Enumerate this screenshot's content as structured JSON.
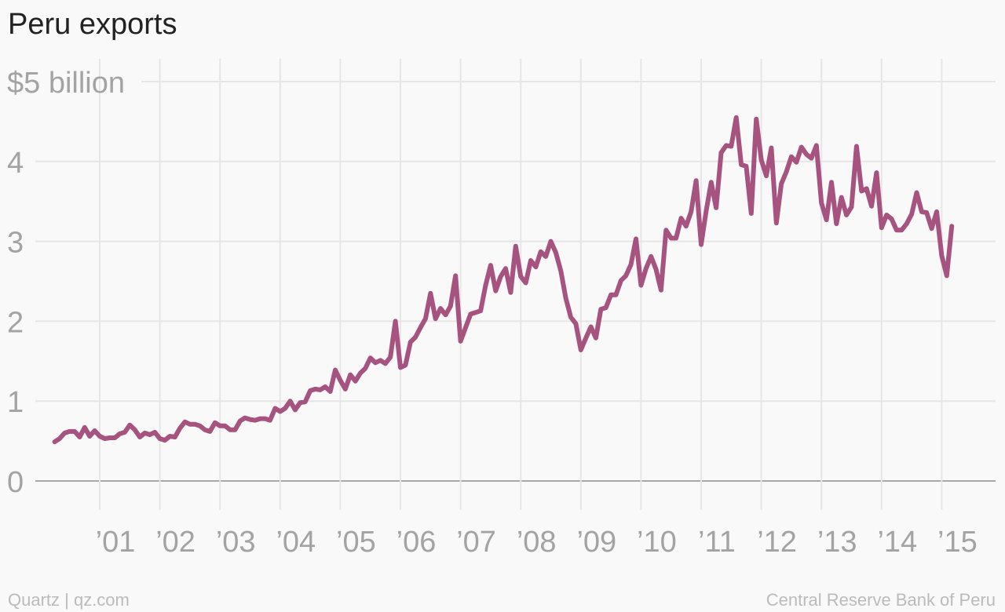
{
  "title": "Peru exports",
  "footer": {
    "left": "Quartz | qz.com",
    "right": "Central Reserve Bank of Peru"
  },
  "colors": {
    "series": "#a6537f",
    "grid": "#e6e6e6",
    "axis_text": "#a3a3a3"
  },
  "chart_data": {
    "type": "line",
    "title": "Peru exports",
    "xlabel": "",
    "ylabel": "",
    "ylim": [
      0,
      5
    ],
    "xlim": [
      "2000-04",
      "2015-07"
    ],
    "grid": true,
    "y_ticks": [
      {
        "value": 5,
        "label": "$5 billion"
      },
      {
        "value": 4,
        "label": "4"
      },
      {
        "value": 3,
        "label": "3"
      },
      {
        "value": 2,
        "label": "2"
      },
      {
        "value": 1,
        "label": "1"
      },
      {
        "value": 0,
        "label": "0"
      }
    ],
    "x_ticks": [
      {
        "date": "2001-01",
        "label": "’01"
      },
      {
        "date": "2002-01",
        "label": "’02"
      },
      {
        "date": "2003-01",
        "label": "’03"
      },
      {
        "date": "2004-01",
        "label": "’04"
      },
      {
        "date": "2005-01",
        "label": "’05"
      },
      {
        "date": "2006-01",
        "label": "’06"
      },
      {
        "date": "2007-01",
        "label": "’07"
      },
      {
        "date": "2008-01",
        "label": "’08"
      },
      {
        "date": "2009-01",
        "label": "’09"
      },
      {
        "date": "2010-01",
        "label": "’10"
      },
      {
        "date": "2011-01",
        "label": "’11"
      },
      {
        "date": "2012-01",
        "label": "’12"
      },
      {
        "date": "2013-01",
        "label": "’13"
      },
      {
        "date": "2014-01",
        "label": "’14"
      },
      {
        "date": "2015-01",
        "label": "’15"
      }
    ],
    "series": [
      {
        "x": [
          "2000-04",
          "2000-05",
          "2000-06",
          "2000-07",
          "2000-08",
          "2000-09",
          "2000-10",
          "2000-11",
          "2000-12",
          "2001-01",
          "2001-02",
          "2001-03",
          "2001-04",
          "2001-05",
          "2001-06",
          "2001-07",
          "2001-08",
          "2001-09",
          "2001-10",
          "2001-11",
          "2001-12",
          "2002-01",
          "2002-02",
          "2002-03",
          "2002-04",
          "2002-05",
          "2002-06",
          "2002-07",
          "2002-08",
          "2002-09",
          "2002-10",
          "2002-11",
          "2002-12",
          "2003-01",
          "2003-02",
          "2003-03",
          "2003-04",
          "2003-05",
          "2003-06",
          "2003-07",
          "2003-08",
          "2003-09",
          "2003-10",
          "2003-11",
          "2003-12",
          "2004-01",
          "2004-02",
          "2004-03",
          "2004-04",
          "2004-05",
          "2004-06",
          "2004-07",
          "2004-08",
          "2004-09",
          "2004-10",
          "2004-11",
          "2004-12",
          "2005-01",
          "2005-02",
          "2005-03",
          "2005-04",
          "2005-05",
          "2005-06",
          "2005-07",
          "2005-08",
          "2005-09",
          "2005-10",
          "2005-11",
          "2005-12",
          "2006-01",
          "2006-02",
          "2006-03",
          "2006-04",
          "2006-05",
          "2006-06",
          "2006-07",
          "2006-08",
          "2006-09",
          "2006-10",
          "2006-11",
          "2006-12",
          "2007-01",
          "2007-02",
          "2007-03",
          "2007-04",
          "2007-05",
          "2007-06",
          "2007-07",
          "2007-08",
          "2007-09",
          "2007-10",
          "2007-11",
          "2007-12",
          "2008-01",
          "2008-02",
          "2008-03",
          "2008-04",
          "2008-05",
          "2008-06",
          "2008-07",
          "2008-08",
          "2008-09",
          "2008-10",
          "2008-11",
          "2008-12",
          "2009-01",
          "2009-02",
          "2009-03",
          "2009-04",
          "2009-05",
          "2009-06",
          "2009-07",
          "2009-08",
          "2009-09",
          "2009-10",
          "2009-11",
          "2009-12",
          "2010-01",
          "2010-02",
          "2010-03",
          "2010-04",
          "2010-05",
          "2010-06",
          "2010-07",
          "2010-08",
          "2010-09",
          "2010-10",
          "2010-11",
          "2010-12",
          "2011-01",
          "2011-02",
          "2011-03",
          "2011-04",
          "2011-05",
          "2011-06",
          "2011-07",
          "2011-08",
          "2011-09",
          "2011-10",
          "2011-11",
          "2011-12",
          "2012-01",
          "2012-02",
          "2012-03",
          "2012-04",
          "2012-05",
          "2012-06",
          "2012-07",
          "2012-08",
          "2012-09",
          "2012-10",
          "2012-11",
          "2012-12",
          "2013-01",
          "2013-02",
          "2013-03",
          "2013-04",
          "2013-05",
          "2013-06",
          "2013-07",
          "2013-08",
          "2013-09",
          "2013-10",
          "2013-11",
          "2013-12",
          "2014-01",
          "2014-02",
          "2014-03",
          "2014-04",
          "2014-05",
          "2014-06",
          "2014-07",
          "2014-08",
          "2014-09",
          "2014-10",
          "2014-11",
          "2014-12",
          "2015-01",
          "2015-02",
          "2015-03"
        ],
        "values": [
          0.49,
          0.53,
          0.6,
          0.62,
          0.62,
          0.55,
          0.67,
          0.56,
          0.63,
          0.56,
          0.53,
          0.54,
          0.54,
          0.59,
          0.61,
          0.7,
          0.64,
          0.55,
          0.6,
          0.58,
          0.61,
          0.53,
          0.51,
          0.56,
          0.55,
          0.66,
          0.74,
          0.71,
          0.71,
          0.69,
          0.64,
          0.62,
          0.73,
          0.69,
          0.69,
          0.64,
          0.64,
          0.75,
          0.79,
          0.77,
          0.76,
          0.78,
          0.78,
          0.76,
          0.91,
          0.87,
          0.91,
          1.0,
          0.89,
          0.98,
          0.99,
          1.13,
          1.15,
          1.14,
          1.18,
          1.12,
          1.39,
          1.26,
          1.15,
          1.33,
          1.25,
          1.35,
          1.41,
          1.54,
          1.48,
          1.51,
          1.47,
          1.55,
          2.0,
          1.42,
          1.45,
          1.74,
          1.8,
          1.92,
          2.03,
          2.35,
          2.03,
          2.16,
          2.08,
          2.19,
          2.57,
          1.75,
          1.92,
          2.09,
          2.11,
          2.13,
          2.45,
          2.7,
          2.38,
          2.56,
          2.66,
          2.36,
          2.94,
          2.56,
          2.48,
          2.76,
          2.68,
          2.87,
          2.81,
          3.0,
          2.86,
          2.63,
          2.29,
          2.05,
          1.97,
          1.64,
          1.79,
          1.93,
          1.79,
          2.15,
          2.17,
          2.33,
          2.33,
          2.51,
          2.57,
          2.71,
          3.03,
          2.45,
          2.66,
          2.81,
          2.65,
          2.39,
          3.14,
          3.04,
          3.04,
          3.29,
          3.19,
          3.37,
          3.76,
          2.96,
          3.38,
          3.74,
          3.42,
          4.11,
          4.2,
          4.19,
          4.55,
          3.96,
          3.94,
          3.35,
          4.53,
          4.02,
          3.82,
          4.17,
          3.23,
          3.72,
          3.87,
          4.06,
          3.99,
          4.18,
          4.09,
          4.04,
          4.2,
          3.48,
          3.27,
          3.74,
          3.22,
          3.55,
          3.33,
          3.43,
          4.19,
          3.63,
          3.66,
          3.44,
          3.86,
          3.17,
          3.33,
          3.28,
          3.14,
          3.14,
          3.22,
          3.34,
          3.61,
          3.37,
          3.36,
          3.16,
          3.37,
          2.82,
          2.57,
          3.19
        ]
      }
    ]
  }
}
